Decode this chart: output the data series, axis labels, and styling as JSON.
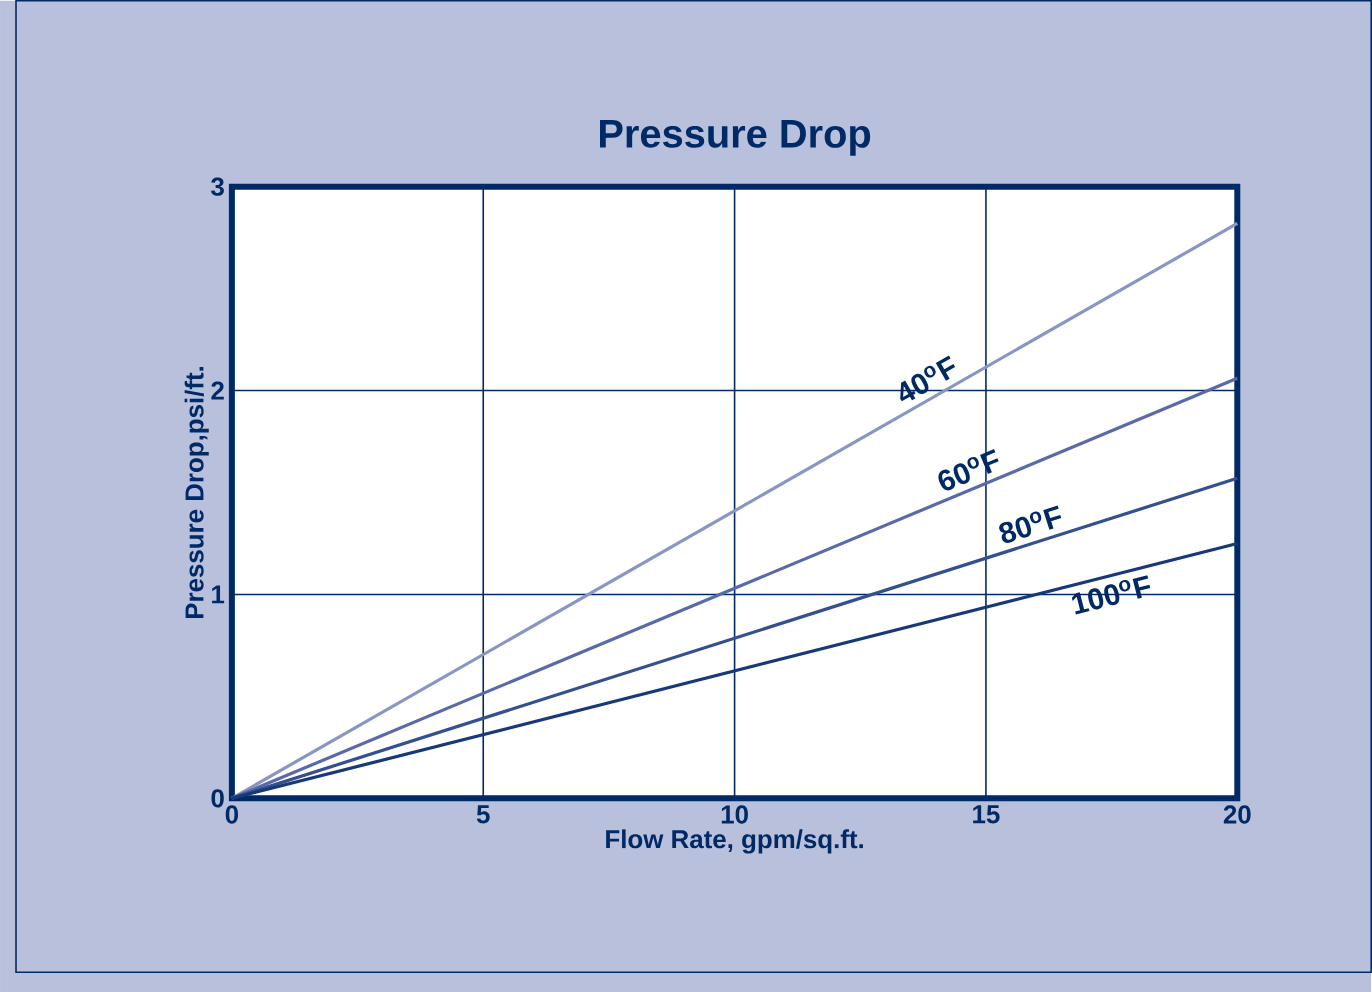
{
  "chart_data": {
    "type": "line",
    "title": "Pressure Drop",
    "xlabel": "Flow Rate, gpm/sq.ft.",
    "ylabel": "Pressure Drop,psi/ft.",
    "x": [
      0,
      20
    ],
    "series": [
      {
        "name": "40$^{o}$F",
        "color": "#8a96c2",
        "values": [
          0,
          2.82
        ]
      },
      {
        "name": "60$^{o}$F",
        "color": "#5a6aa8",
        "values": [
          0,
          2.06
        ]
      },
      {
        "name": "80$^{o}$F",
        "color": "#34508f",
        "values": [
          0,
          1.57
        ]
      },
      {
        "name": "100$^{o}$F",
        "color": "#17397a",
        "values": [
          0,
          1.25
        ]
      }
    ],
    "xlim": [
      0,
      20
    ],
    "ylim": [
      0,
      3
    ],
    "xticks": [
      0,
      5,
      10,
      15,
      20
    ],
    "yticks": [
      0,
      1,
      2,
      3
    ],
    "grid": true,
    "marker": "none",
    "line_style": "solid"
  }
}
